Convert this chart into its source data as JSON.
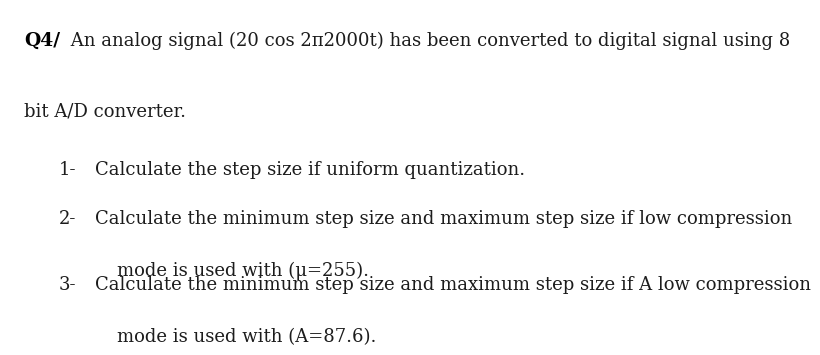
{
  "background_color": "#ffffff",
  "title_bold": "Q4/",
  "title_normal": " An analog signal (20 cos 2π2000t) has been converted to digital signal using 8",
  "title_line2": "bit A/D converter.",
  "items": [
    {
      "number": "1-",
      "text": "Calculate the step size if uniform quantization.",
      "continuation": null
    },
    {
      "number": "2-",
      "text_line1": "Calculate the minimum step size and maximum step size if low compression",
      "text_line2": "mode is used with (μ=255)."
    },
    {
      "number": "3-",
      "text_line1": "Calculate the minimum step size and maximum step size if A low compression",
      "text_line2": "mode is used with (A=87.6)."
    }
  ],
  "font_size": 13.0,
  "text_color": "#1c1c1c",
  "bold_color": "#000000"
}
